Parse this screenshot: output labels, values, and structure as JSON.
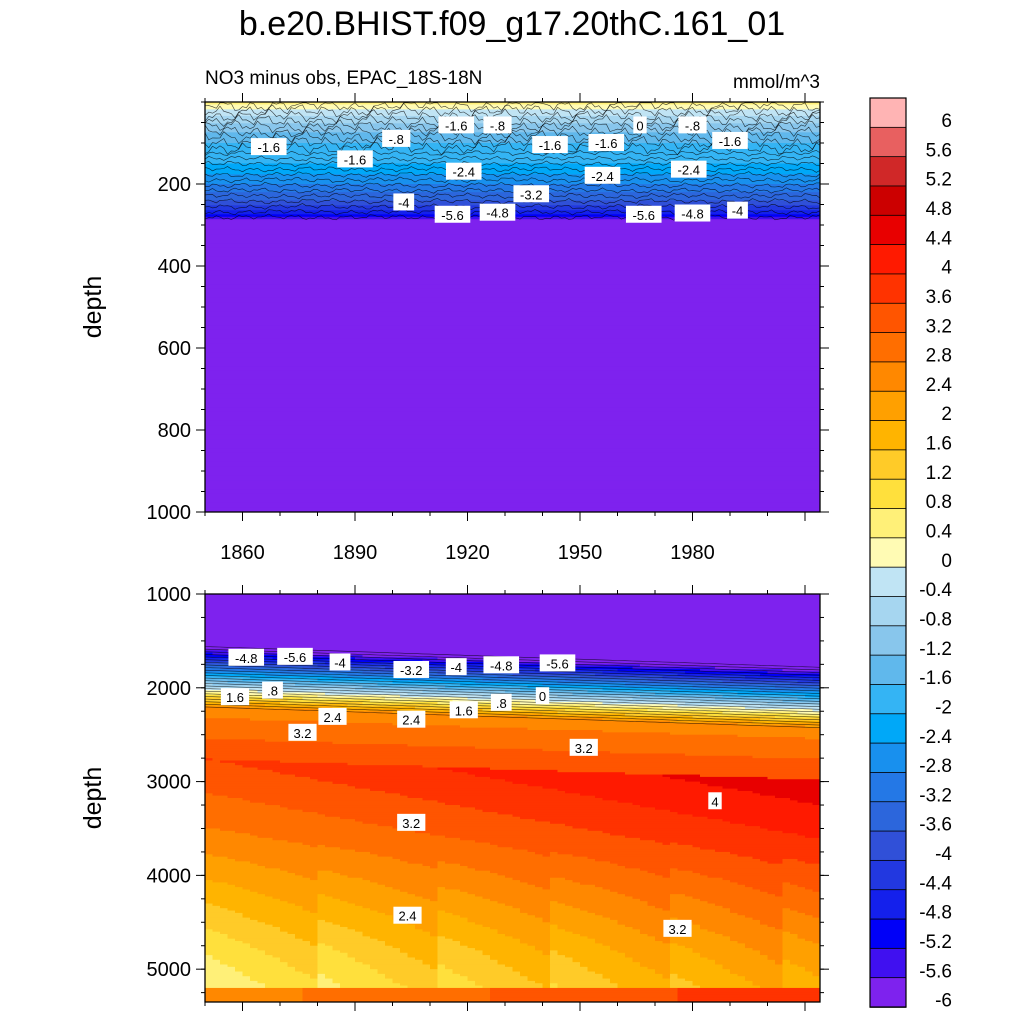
{
  "page_title": "b.e20.BHIST.f09_g17.20thC.161_01",
  "chart_data": [
    {
      "type": "contour",
      "subtitle_left": "NO3 minus obs, EPAC_18S-18N",
      "subtitle_right": "mmol/m^3",
      "xlabel": "",
      "ylabel": "depth",
      "xlim": [
        1850,
        2014
      ],
      "ylim": [
        1000,
        0
      ],
      "xticks": [
        1860,
        1890,
        1920,
        1950,
        1980
      ],
      "yticks": [
        200,
        400,
        600,
        800,
        1000
      ],
      "profile": {
        "depth": [
          0,
          25,
          60,
          100,
          150,
          200,
          240,
          275,
          295,
          1000
        ],
        "value": [
          0.6,
          -0.2,
          -1.0,
          -1.6,
          -2.0,
          -2.8,
          -3.6,
          -4.8,
          -6.2,
          -6.3
        ]
      },
      "contour_labels": [
        {
          "text": "-1.6",
          "x": 1867,
          "y": 110
        },
        {
          "text": "-.8",
          "x": 1901,
          "y": 90
        },
        {
          "text": "-1.6",
          "x": 1890,
          "y": 140
        },
        {
          "text": "-1.6",
          "x": 1917,
          "y": 57
        },
        {
          "text": "-.8",
          "x": 1928,
          "y": 57
        },
        {
          "text": "-1.6",
          "x": 1942,
          "y": 105
        },
        {
          "text": "-1.6",
          "x": 1957,
          "y": 100
        },
        {
          "text": "0",
          "x": 1966,
          "y": 57
        },
        {
          "text": "-.8",
          "x": 1980,
          "y": 57
        },
        {
          "text": "-1.6",
          "x": 1990,
          "y": 95
        },
        {
          "text": "-2.4",
          "x": 1919,
          "y": 170
        },
        {
          "text": "-2.4",
          "x": 1956,
          "y": 180
        },
        {
          "text": "-2.4",
          "x": 1979,
          "y": 165
        },
        {
          "text": "-3.2",
          "x": 1937,
          "y": 225
        },
        {
          "text": "-4",
          "x": 1903,
          "y": 245
        },
        {
          "text": "-5.6",
          "x": 1916,
          "y": 275
        },
        {
          "text": "-4.8",
          "x": 1928,
          "y": 270
        },
        {
          "text": "-5.6",
          "x": 1967,
          "y": 275
        },
        {
          "text": "-4.8",
          "x": 1980,
          "y": 272
        },
        {
          "text": "-4",
          "x": 1992,
          "y": 265
        }
      ]
    },
    {
      "type": "contour",
      "xlabel": "",
      "ylabel": "depth",
      "xlim": [
        1850,
        2014
      ],
      "ylim": [
        5350,
        1000
      ],
      "yticks": [
        1000,
        2000,
        3000,
        4000,
        5000
      ],
      "contour_labels": [
        {
          "text": "-4.8",
          "x": 1861,
          "y": 1680
        },
        {
          "text": "-5.6",
          "x": 1874,
          "y": 1670
        },
        {
          "text": "-4",
          "x": 1886,
          "y": 1730
        },
        {
          "text": "-3.2",
          "x": 1905,
          "y": 1810
        },
        {
          "text": "-4",
          "x": 1917,
          "y": 1780
        },
        {
          "text": "-4.8",
          "x": 1929,
          "y": 1760
        },
        {
          "text": "-5.6",
          "x": 1944,
          "y": 1740
        },
        {
          "text": "1.6",
          "x": 1858,
          "y": 2100
        },
        {
          "text": ".8",
          "x": 1868,
          "y": 2030
        },
        {
          "text": "0",
          "x": 1940,
          "y": 2090
        },
        {
          "text": ".8",
          "x": 1929,
          "y": 2160
        },
        {
          "text": "1.6",
          "x": 1919,
          "y": 2240
        },
        {
          "text": "2.4",
          "x": 1884,
          "y": 2310
        },
        {
          "text": "2.4",
          "x": 1905,
          "y": 2340
        },
        {
          "text": "3.2",
          "x": 1876,
          "y": 2480
        },
        {
          "text": "3.2",
          "x": 1951,
          "y": 2640
        },
        {
          "text": "4",
          "x": 1986,
          "y": 3210
        },
        {
          "text": "3.2",
          "x": 1905,
          "y": 3440
        },
        {
          "text": "2.4",
          "x": 1904,
          "y": 4430
        },
        {
          "text": "3.2",
          "x": 1976,
          "y": 4570
        }
      ]
    }
  ],
  "colorbar": {
    "labels": [
      "6",
      "5.6",
      "5.2",
      "4.8",
      "4.4",
      "4",
      "3.6",
      "3.2",
      "2.8",
      "2.4",
      "2",
      "1.6",
      "1.2",
      "0.8",
      "0.4",
      "0",
      "-0.4",
      "-0.8",
      "-1.2",
      "-1.6",
      "-2",
      "-2.4",
      "-2.8",
      "-3.2",
      "-3.6",
      "-4",
      "-4.4",
      "-4.8",
      "-5.2",
      "-5.6",
      "-6"
    ],
    "colors": [
      "#ffb4b4",
      "#e86060",
      "#d02828",
      "#cc0000",
      "#e80000",
      "#ff1a00",
      "#ff3300",
      "#ff5500",
      "#ff6e00",
      "#ff8800",
      "#ffa000",
      "#ffb400",
      "#ffcb28",
      "#ffe03c",
      "#fff078",
      "#fffbb4",
      "#c0e4f4",
      "#a6d6f0",
      "#88c6ec",
      "#60b8ec",
      "#34b4f4",
      "#00a8f8",
      "#1890ee",
      "#2478e6",
      "#2c66dc",
      "#3050d8",
      "#2238e0",
      "#1420ec",
      "#0000f8",
      "#4010f0",
      "#7e22ee"
    ]
  }
}
